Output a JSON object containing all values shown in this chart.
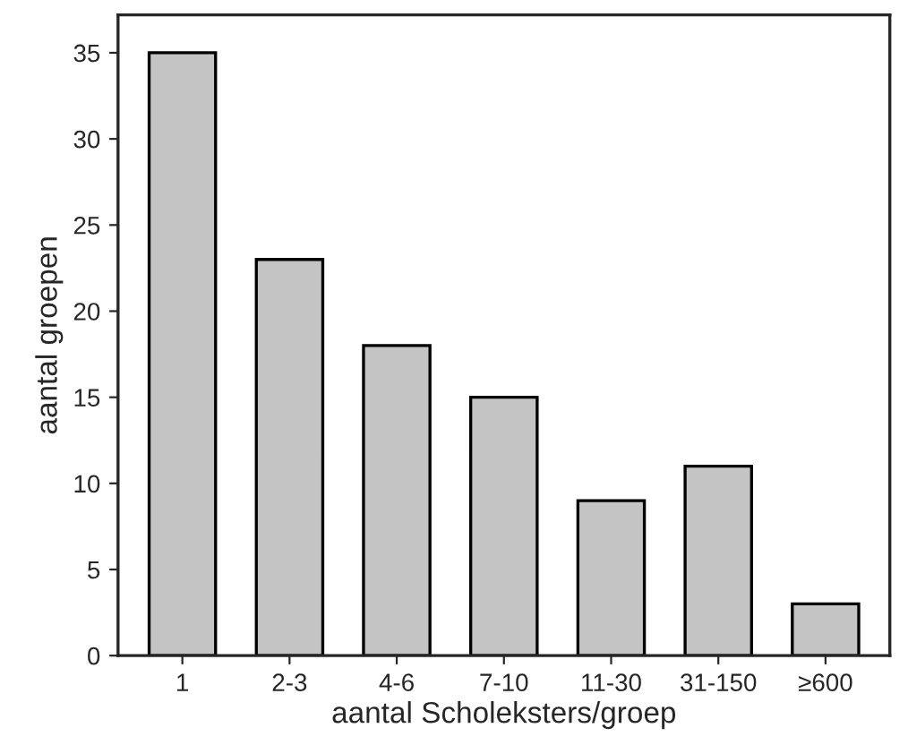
{
  "chart_data": {
    "type": "bar",
    "xlabel": "aantal Scholeksters/groep",
    "ylabel": "aantal groepen",
    "categories": [
      "1",
      "2-3",
      "4-6",
      "7-10",
      "11-30",
      "31-150",
      "≥600"
    ],
    "values": [
      35,
      23,
      18,
      15,
      9,
      11,
      3
    ],
    "color": "#c4c4c4",
    "ylim": [
      0,
      37.2
    ],
    "yticks": [
      0,
      5,
      10,
      15,
      20,
      25,
      30,
      35
    ],
    "grid": false
  }
}
